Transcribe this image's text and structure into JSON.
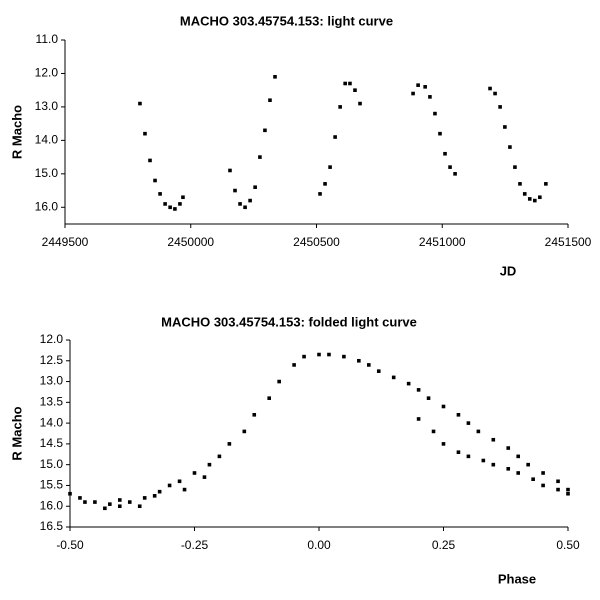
{
  "chart_data": [
    {
      "type": "scatter",
      "title": "MACHO 303.45754.153: light curve",
      "xlabel": "JD",
      "ylabel": "R Macho",
      "color": "#000000",
      "x": [
        2449798,
        2449818,
        2449838,
        2449858,
        2449878,
        2449898,
        2449918,
        2449937,
        2449957,
        2449969,
        2450156,
        2450176,
        2450196,
        2450216,
        2450236,
        2450256,
        2450275,
        2450295,
        2450315,
        2450335,
        2450514,
        2450534,
        2450554,
        2450574,
        2450594,
        2450614,
        2450633,
        2450653,
        2450673,
        2450884,
        2450904,
        2450932,
        2450951,
        2450971,
        2450991,
        2451011,
        2451031,
        2451051,
        2451190,
        2451210,
        2451230,
        2451249,
        2451269,
        2451289,
        2451309,
        2451328,
        2451348,
        2451368,
        2451388,
        2451412
      ],
      "values": [
        12.9,
        13.8,
        14.6,
        15.2,
        15.6,
        15.9,
        16.0,
        16.05,
        15.9,
        15.7,
        14.9,
        15.5,
        15.9,
        16.0,
        15.8,
        15.4,
        14.5,
        13.7,
        12.8,
        12.1,
        15.6,
        15.3,
        14.8,
        13.9,
        13.0,
        12.3,
        12.3,
        12.5,
        12.9,
        12.6,
        12.35,
        12.4,
        12.7,
        13.2,
        13.8,
        14.4,
        14.8,
        15.0,
        12.45,
        12.6,
        13.0,
        13.6,
        14.2,
        14.8,
        15.3,
        15.6,
        15.75,
        15.8,
        15.7,
        15.3
      ],
      "xlim": [
        2449500,
        2451500
      ],
      "xticks": [
        2449500,
        2450000,
        2450500,
        2451000,
        2451500
      ],
      "ylim": [
        16.5,
        11.0
      ],
      "yticks": [
        {
          "value": 11.0,
          "label": "11.0"
        },
        {
          "value": 12.0,
          "label": "12.0"
        },
        {
          "value": 13.0,
          "label": "13.0"
        },
        {
          "value": 14.0,
          "label": "14.0"
        },
        {
          "value": 15.0,
          "label": "15.0"
        },
        {
          "value": 16.0,
          "label": "16.0"
        }
      ]
    },
    {
      "type": "scatter",
      "title": "MACHO 303.45754.153: folded light curve",
      "xlabel": "Phase",
      "ylabel": "R Macho",
      "color": "#000000",
      "x": [
        -0.5,
        -0.48,
        -0.45,
        -0.42,
        -0.4,
        -0.38,
        -0.35,
        -0.32,
        -0.3,
        -0.28,
        -0.25,
        -0.22,
        -0.2,
        -0.18,
        -0.15,
        -0.13,
        -0.1,
        -0.08,
        -0.05,
        -0.03,
        0.0,
        0.02,
        0.05,
        0.08,
        0.1,
        0.12,
        0.15,
        0.18,
        0.2,
        0.22,
        0.25,
        0.28,
        0.3,
        0.32,
        0.35,
        0.38,
        0.4,
        0.42,
        0.45,
        0.48,
        0.5,
        0.2,
        0.23,
        0.25,
        0.28,
        0.3,
        0.33,
        0.35,
        0.38,
        0.4,
        0.43,
        0.45,
        0.48,
        0.5,
        -0.47,
        -0.43,
        -0.4,
        -0.36,
        -0.33,
        -0.27,
        -0.23
      ],
      "values": [
        15.7,
        15.8,
        15.9,
        15.95,
        16.0,
        15.9,
        15.8,
        15.65,
        15.5,
        15.4,
        15.2,
        15.0,
        14.8,
        14.5,
        14.2,
        13.8,
        13.4,
        13.0,
        12.6,
        12.4,
        12.35,
        12.35,
        12.4,
        12.5,
        12.6,
        12.75,
        12.9,
        13.05,
        13.2,
        13.4,
        13.6,
        13.8,
        14.0,
        14.2,
        14.4,
        14.6,
        14.8,
        15.0,
        15.2,
        15.4,
        15.6,
        13.9,
        14.2,
        14.5,
        14.7,
        14.8,
        14.9,
        15.0,
        15.1,
        15.2,
        15.35,
        15.5,
        15.6,
        15.7,
        15.9,
        16.05,
        15.85,
        16.0,
        15.75,
        15.6,
        15.3
      ],
      "xlim": [
        -0.5,
        0.5
      ],
      "xticks": [
        {
          "value": -0.5,
          "label": "-0.50"
        },
        {
          "value": -0.25,
          "label": "-0.25"
        },
        {
          "value": 0.0,
          "label": "0.00"
        },
        {
          "value": 0.25,
          "label": "0.25"
        },
        {
          "value": 0.5,
          "label": "0.50"
        }
      ],
      "ylim": [
        16.5,
        12.0
      ],
      "yticks": [
        {
          "value": 12.0,
          "label": "12.0"
        },
        12.5,
        {
          "value": 13.0,
          "label": "13.0"
        },
        13.5,
        {
          "value": 14.0,
          "label": "14.0"
        },
        14.5,
        {
          "value": 15.0,
          "label": "15.0"
        },
        15.5,
        {
          "value": 16.0,
          "label": "16.0"
        },
        16.5
      ]
    }
  ]
}
